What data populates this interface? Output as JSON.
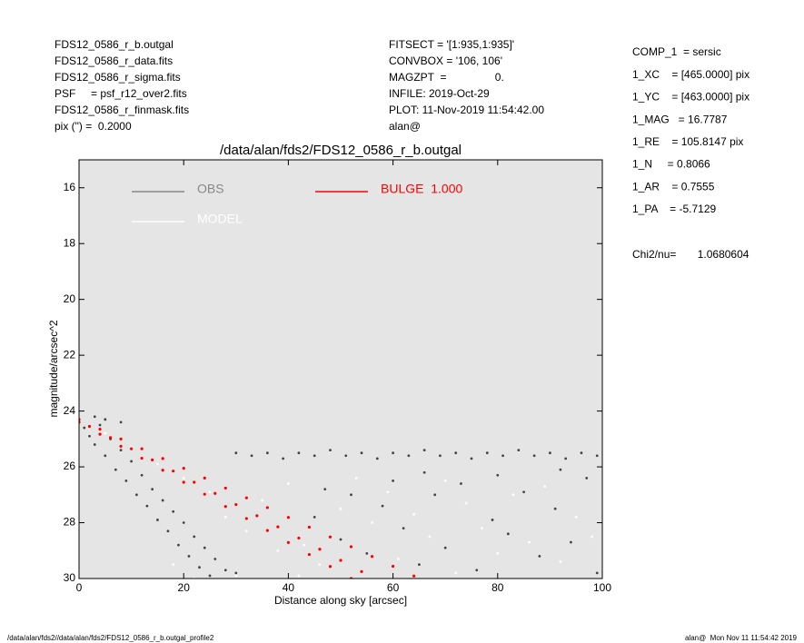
{
  "header": {
    "left": [
      "FDS12_0586_r_b.outgal",
      "FDS12_0586_r_data.fits",
      "FDS12_0586_r_sigma.fits",
      "PSF     = psf_r12_over2.fits",
      "FDS12_0586_r_finmask.fits",
      "pix (\") =  0.2000"
    ],
    "middle": [
      "FITSECT = '[1:935,1:935]'",
      "CONVBOX = '106, 106'",
      "MAGZPT  =                0.",
      "INFILE: 2019-Oct-29",
      "PLOT: 11-Nov-2019 11:54:42.00",
      "alan@"
    ],
    "params": [
      "COMP_1  = sersic",
      "1_XC    = [465.0000] pix",
      "1_YC    = [463.0000] pix",
      "1_MAG   = 16.7787",
      "1_RE    = 105.8147 pix",
      "1_N     = 0.8066",
      "1_AR    = 0.7555",
      "1_PA    = -5.7129"
    ],
    "chi": "Chi2/nu=       1.0680604"
  },
  "footer": {
    "left": "/data/alan/fds2//data/alan/fds2/FDS12_0586_r_b.outgal_profile2",
    "right": "alan@  Mon Nov 11 11:54:42 2019"
  },
  "chart_data": {
    "type": "scatter",
    "title": "/data/alan/fds2/FDS12_0586_r_b.outgal",
    "xlabel": "Distance along sky [arcsec]",
    "ylabel": "magnitude/arcsec^2",
    "xlim": [
      0,
      100
    ],
    "xticks": [
      0,
      20,
      40,
      60,
      80,
      100
    ],
    "ylim": [
      15,
      30
    ],
    "yinverted": true,
    "yticks": [
      16,
      18,
      20,
      22,
      24,
      26,
      28,
      30
    ],
    "series": [
      {
        "name": "OBS",
        "color": "#444444",
        "legend_color": "#888888",
        "x": [
          1,
          2,
          3,
          4,
          5,
          6,
          7,
          8,
          9,
          10,
          11,
          12,
          13,
          14,
          15,
          16,
          17,
          18,
          19,
          20,
          21,
          22,
          23,
          24,
          25,
          26,
          28,
          30,
          3,
          5,
          8,
          30,
          33,
          36,
          39,
          42,
          45,
          48,
          51,
          54,
          57,
          60,
          63,
          66,
          69,
          72,
          75,
          78,
          81,
          84,
          87,
          90,
          93,
          96,
          99,
          45,
          50,
          55,
          58,
          62,
          65,
          68,
          70,
          73,
          76,
          79,
          82,
          85,
          88,
          91,
          94,
          97,
          99,
          60,
          66,
          80,
          92,
          52,
          47
        ],
        "y": [
          24.6,
          24.9,
          25.2,
          24.5,
          25.6,
          25.0,
          26.1,
          25.4,
          26.5,
          25.8,
          27.0,
          26.3,
          27.4,
          26.8,
          27.9,
          27.2,
          28.3,
          27.6,
          28.8,
          28.0,
          29.2,
          28.5,
          29.6,
          28.9,
          29.9,
          29.3,
          29.7,
          29.8,
          24.2,
          24.3,
          24.4,
          25.5,
          25.6,
          25.5,
          25.7,
          25.5,
          25.6,
          25.4,
          25.6,
          25.5,
          25.7,
          25.5,
          25.6,
          25.4,
          25.6,
          25.5,
          25.7,
          25.5,
          25.6,
          25.4,
          25.6,
          25.5,
          25.7,
          25.5,
          25.6,
          27.8,
          28.6,
          29.1,
          27.4,
          28.2,
          29.5,
          27.0,
          28.9,
          26.6,
          29.7,
          27.9,
          28.4,
          26.9,
          29.2,
          27.5,
          28.7,
          26.4,
          29.8,
          26.5,
          26.2,
          26.3,
          26.1,
          27.0,
          26.8
        ]
      },
      {
        "name": "MODEL",
        "color": "#ffffff",
        "legend_color": "#ffffff",
        "x": [
          5,
          10,
          15,
          20,
          25,
          28,
          32,
          35,
          38,
          40,
          43,
          46,
          50,
          53,
          56,
          59,
          61,
          64,
          67,
          70,
          72,
          74,
          77,
          80,
          83,
          86,
          89,
          92,
          95,
          98,
          30,
          42,
          18,
          22
        ],
        "y": [
          24.8,
          25.3,
          25.9,
          26.4,
          26.9,
          27.8,
          28.3,
          27.2,
          29.0,
          26.6,
          28.8,
          29.5,
          27.5,
          26.4,
          28.0,
          26.9,
          29.3,
          27.7,
          28.5,
          26.5,
          29.8,
          27.3,
          28.2,
          29.1,
          27.0,
          28.7,
          26.7,
          29.4,
          27.8,
          28.5,
          29.9,
          29.9,
          29.5,
          30.0
        ]
      },
      {
        "name": "BULGE  1.000",
        "color": "#ff0000",
        "legend_color": "#ff0000",
        "x": [
          0,
          4,
          8,
          12,
          16,
          20,
          24,
          28,
          32,
          36,
          40,
          44,
          48,
          52,
          56,
          60,
          64,
          0,
          4,
          8,
          12,
          16,
          20,
          24,
          28,
          32,
          36,
          40,
          44,
          48,
          52,
          2,
          6,
          10,
          14,
          18,
          22,
          26,
          30,
          34,
          38,
          42,
          46,
          50,
          54
        ],
        "y": [
          24.3,
          24.65,
          25.0,
          25.35,
          25.7,
          26.05,
          26.4,
          26.76,
          27.11,
          27.46,
          27.81,
          28.16,
          28.51,
          28.86,
          29.21,
          29.56,
          29.91,
          24.4,
          24.83,
          25.26,
          25.69,
          26.12,
          26.55,
          26.98,
          27.42,
          27.85,
          28.28,
          28.71,
          29.14,
          29.57,
          30.0,
          24.55,
          24.95,
          25.35,
          25.75,
          26.15,
          26.55,
          26.95,
          27.35,
          27.75,
          28.15,
          28.55,
          28.95,
          29.35,
          29.75
        ]
      }
    ],
    "plot_color": "#e5e5e5"
  }
}
